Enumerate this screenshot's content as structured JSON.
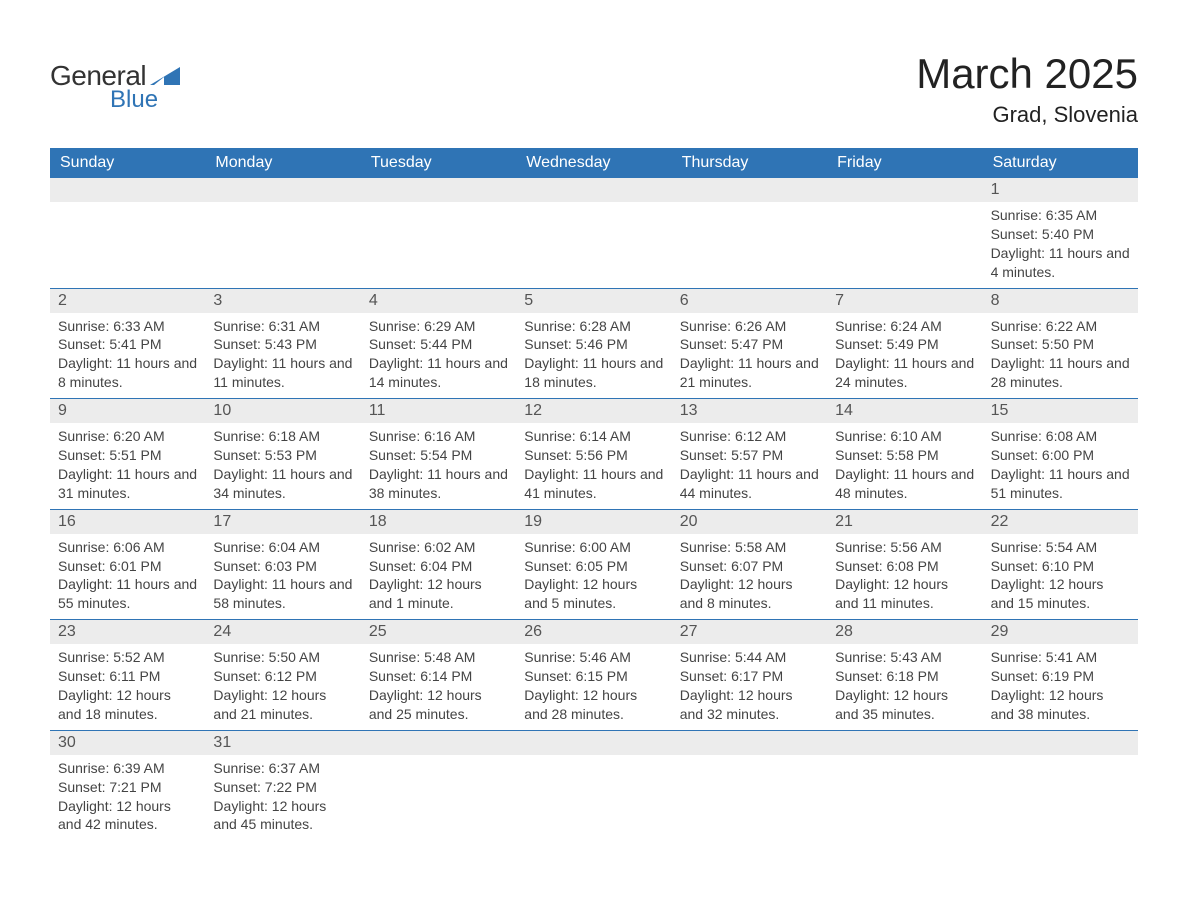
{
  "logo": {
    "word1": "General",
    "word2": "Blue",
    "shape_color": "#2f74b5"
  },
  "title": "March 2025",
  "location": "Grad, Slovenia",
  "colors": {
    "header_bg": "#2f74b5",
    "header_text": "#ffffff",
    "daynum_bg": "#ececec",
    "daynum_text": "#555555",
    "body_text": "#444444",
    "row_divider": "#2f74b5",
    "page_bg": "#ffffff"
  },
  "typography": {
    "title_fontsize": 42,
    "location_fontsize": 22,
    "weekday_fontsize": 16,
    "daynum_fontsize": 16,
    "body_fontsize": 14,
    "font_family": "Arial"
  },
  "weekdays": [
    "Sunday",
    "Monday",
    "Tuesday",
    "Wednesday",
    "Thursday",
    "Friday",
    "Saturday"
  ],
  "weeks": [
    [
      {
        "num": "",
        "sunrise": "",
        "sunset": "",
        "daylight": ""
      },
      {
        "num": "",
        "sunrise": "",
        "sunset": "",
        "daylight": ""
      },
      {
        "num": "",
        "sunrise": "",
        "sunset": "",
        "daylight": ""
      },
      {
        "num": "",
        "sunrise": "",
        "sunset": "",
        "daylight": ""
      },
      {
        "num": "",
        "sunrise": "",
        "sunset": "",
        "daylight": ""
      },
      {
        "num": "",
        "sunrise": "",
        "sunset": "",
        "daylight": ""
      },
      {
        "num": "1",
        "sunrise": "Sunrise: 6:35 AM",
        "sunset": "Sunset: 5:40 PM",
        "daylight": "Daylight: 11 hours and 4 minutes."
      }
    ],
    [
      {
        "num": "2",
        "sunrise": "Sunrise: 6:33 AM",
        "sunset": "Sunset: 5:41 PM",
        "daylight": "Daylight: 11 hours and 8 minutes."
      },
      {
        "num": "3",
        "sunrise": "Sunrise: 6:31 AM",
        "sunset": "Sunset: 5:43 PM",
        "daylight": "Daylight: 11 hours and 11 minutes."
      },
      {
        "num": "4",
        "sunrise": "Sunrise: 6:29 AM",
        "sunset": "Sunset: 5:44 PM",
        "daylight": "Daylight: 11 hours and 14 minutes."
      },
      {
        "num": "5",
        "sunrise": "Sunrise: 6:28 AM",
        "sunset": "Sunset: 5:46 PM",
        "daylight": "Daylight: 11 hours and 18 minutes."
      },
      {
        "num": "6",
        "sunrise": "Sunrise: 6:26 AM",
        "sunset": "Sunset: 5:47 PM",
        "daylight": "Daylight: 11 hours and 21 minutes."
      },
      {
        "num": "7",
        "sunrise": "Sunrise: 6:24 AM",
        "sunset": "Sunset: 5:49 PM",
        "daylight": "Daylight: 11 hours and 24 minutes."
      },
      {
        "num": "8",
        "sunrise": "Sunrise: 6:22 AM",
        "sunset": "Sunset: 5:50 PM",
        "daylight": "Daylight: 11 hours and 28 minutes."
      }
    ],
    [
      {
        "num": "9",
        "sunrise": "Sunrise: 6:20 AM",
        "sunset": "Sunset: 5:51 PM",
        "daylight": "Daylight: 11 hours and 31 minutes."
      },
      {
        "num": "10",
        "sunrise": "Sunrise: 6:18 AM",
        "sunset": "Sunset: 5:53 PM",
        "daylight": "Daylight: 11 hours and 34 minutes."
      },
      {
        "num": "11",
        "sunrise": "Sunrise: 6:16 AM",
        "sunset": "Sunset: 5:54 PM",
        "daylight": "Daylight: 11 hours and 38 minutes."
      },
      {
        "num": "12",
        "sunrise": "Sunrise: 6:14 AM",
        "sunset": "Sunset: 5:56 PM",
        "daylight": "Daylight: 11 hours and 41 minutes."
      },
      {
        "num": "13",
        "sunrise": "Sunrise: 6:12 AM",
        "sunset": "Sunset: 5:57 PM",
        "daylight": "Daylight: 11 hours and 44 minutes."
      },
      {
        "num": "14",
        "sunrise": "Sunrise: 6:10 AM",
        "sunset": "Sunset: 5:58 PM",
        "daylight": "Daylight: 11 hours and 48 minutes."
      },
      {
        "num": "15",
        "sunrise": "Sunrise: 6:08 AM",
        "sunset": "Sunset: 6:00 PM",
        "daylight": "Daylight: 11 hours and 51 minutes."
      }
    ],
    [
      {
        "num": "16",
        "sunrise": "Sunrise: 6:06 AM",
        "sunset": "Sunset: 6:01 PM",
        "daylight": "Daylight: 11 hours and 55 minutes."
      },
      {
        "num": "17",
        "sunrise": "Sunrise: 6:04 AM",
        "sunset": "Sunset: 6:03 PM",
        "daylight": "Daylight: 11 hours and 58 minutes."
      },
      {
        "num": "18",
        "sunrise": "Sunrise: 6:02 AM",
        "sunset": "Sunset: 6:04 PM",
        "daylight": "Daylight: 12 hours and 1 minute."
      },
      {
        "num": "19",
        "sunrise": "Sunrise: 6:00 AM",
        "sunset": "Sunset: 6:05 PM",
        "daylight": "Daylight: 12 hours and 5 minutes."
      },
      {
        "num": "20",
        "sunrise": "Sunrise: 5:58 AM",
        "sunset": "Sunset: 6:07 PM",
        "daylight": "Daylight: 12 hours and 8 minutes."
      },
      {
        "num": "21",
        "sunrise": "Sunrise: 5:56 AM",
        "sunset": "Sunset: 6:08 PM",
        "daylight": "Daylight: 12 hours and 11 minutes."
      },
      {
        "num": "22",
        "sunrise": "Sunrise: 5:54 AM",
        "sunset": "Sunset: 6:10 PM",
        "daylight": "Daylight: 12 hours and 15 minutes."
      }
    ],
    [
      {
        "num": "23",
        "sunrise": "Sunrise: 5:52 AM",
        "sunset": "Sunset: 6:11 PM",
        "daylight": "Daylight: 12 hours and 18 minutes."
      },
      {
        "num": "24",
        "sunrise": "Sunrise: 5:50 AM",
        "sunset": "Sunset: 6:12 PM",
        "daylight": "Daylight: 12 hours and 21 minutes."
      },
      {
        "num": "25",
        "sunrise": "Sunrise: 5:48 AM",
        "sunset": "Sunset: 6:14 PM",
        "daylight": "Daylight: 12 hours and 25 minutes."
      },
      {
        "num": "26",
        "sunrise": "Sunrise: 5:46 AM",
        "sunset": "Sunset: 6:15 PM",
        "daylight": "Daylight: 12 hours and 28 minutes."
      },
      {
        "num": "27",
        "sunrise": "Sunrise: 5:44 AM",
        "sunset": "Sunset: 6:17 PM",
        "daylight": "Daylight: 12 hours and 32 minutes."
      },
      {
        "num": "28",
        "sunrise": "Sunrise: 5:43 AM",
        "sunset": "Sunset: 6:18 PM",
        "daylight": "Daylight: 12 hours and 35 minutes."
      },
      {
        "num": "29",
        "sunrise": "Sunrise: 5:41 AM",
        "sunset": "Sunset: 6:19 PM",
        "daylight": "Daylight: 12 hours and 38 minutes."
      }
    ],
    [
      {
        "num": "30",
        "sunrise": "Sunrise: 6:39 AM",
        "sunset": "Sunset: 7:21 PM",
        "daylight": "Daylight: 12 hours and 42 minutes."
      },
      {
        "num": "31",
        "sunrise": "Sunrise: 6:37 AM",
        "sunset": "Sunset: 7:22 PM",
        "daylight": "Daylight: 12 hours and 45 minutes."
      },
      {
        "num": "",
        "sunrise": "",
        "sunset": "",
        "daylight": ""
      },
      {
        "num": "",
        "sunrise": "",
        "sunset": "",
        "daylight": ""
      },
      {
        "num": "",
        "sunrise": "",
        "sunset": "",
        "daylight": ""
      },
      {
        "num": "",
        "sunrise": "",
        "sunset": "",
        "daylight": ""
      },
      {
        "num": "",
        "sunrise": "",
        "sunset": "",
        "daylight": ""
      }
    ]
  ]
}
